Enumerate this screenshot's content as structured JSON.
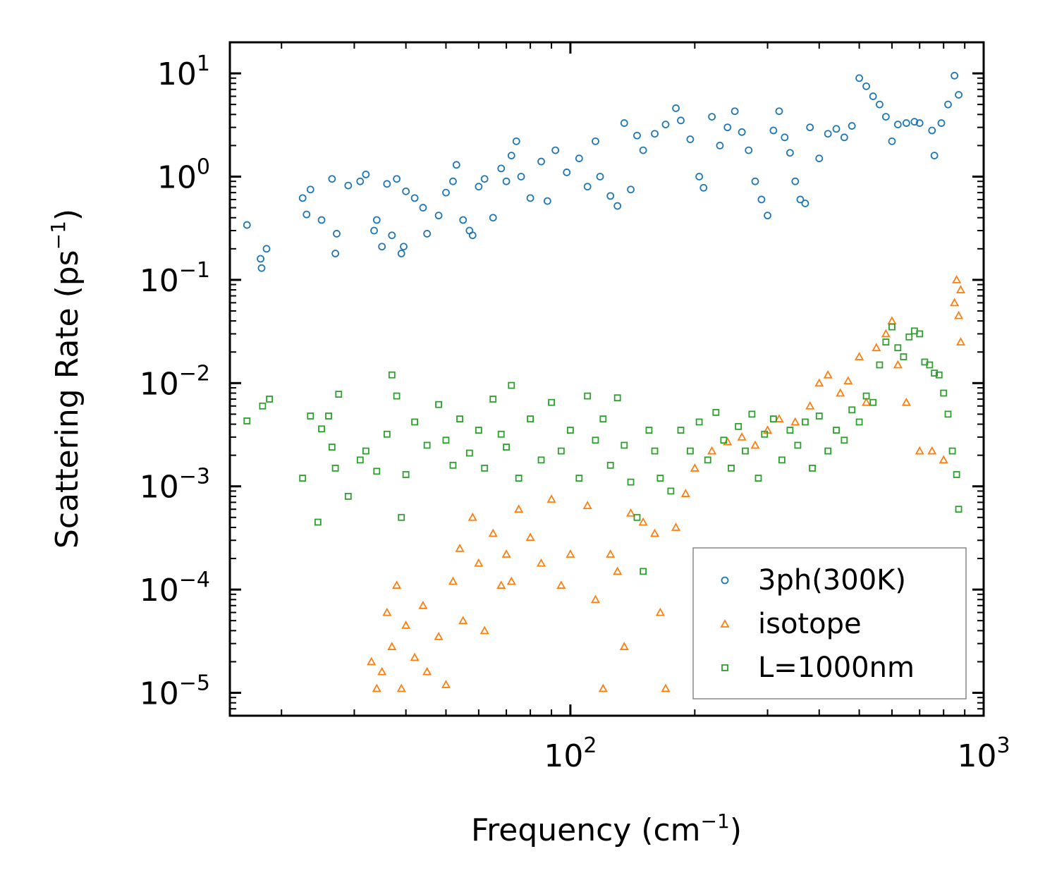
{
  "chart_data": {
    "type": "scatter",
    "title": "",
    "xlabel": "Frequency (cm",
    "xlabel_sup": "−1",
    "xlabel_tail": ")",
    "ylabel": "Scattering Rate (ps",
    "ylabel_sup": "−1",
    "ylabel_tail": ")",
    "xscale": "log",
    "yscale": "log",
    "xlim": [
      15,
      1000
    ],
    "ylim": [
      6e-06,
      20
    ],
    "xticks": [
      {
        "value": 100,
        "base": "10",
        "exp": "2"
      },
      {
        "value": 1000,
        "base": "10",
        "exp": "3"
      }
    ],
    "yticks": [
      {
        "value": 10,
        "base": "10",
        "exp": "1"
      },
      {
        "value": 1,
        "base": "10",
        "exp": "0"
      },
      {
        "value": 0.1,
        "base": "10",
        "exp": "−1"
      },
      {
        "value": 0.01,
        "base": "10",
        "exp": "−2"
      },
      {
        "value": 0.001,
        "base": "10",
        "exp": "−3"
      },
      {
        "value": 0.0001,
        "base": "10",
        "exp": "−4"
      },
      {
        "value": 1e-05,
        "base": "10",
        "exp": "−5"
      }
    ],
    "legend_position": "lower-right",
    "series": [
      {
        "name": "3ph(300K)",
        "marker": "circle",
        "color": "#1f77b4",
        "points": [
          [
            16.5,
            0.34
          ],
          [
            17.8,
            0.16
          ],
          [
            17.9,
            0.13
          ],
          [
            18.4,
            0.2
          ],
          [
            22.5,
            0.62
          ],
          [
            23.0,
            0.43
          ],
          [
            23.5,
            0.75
          ],
          [
            25.0,
            0.38
          ],
          [
            26.5,
            0.95
          ],
          [
            27.0,
            0.18
          ],
          [
            27.2,
            0.28
          ],
          [
            29.0,
            0.82
          ],
          [
            31.0,
            0.9
          ],
          [
            32.0,
            1.05
          ],
          [
            33.5,
            0.3
          ],
          [
            34.0,
            0.38
          ],
          [
            35.0,
            0.21
          ],
          [
            36.0,
            0.85
          ],
          [
            37.0,
            0.27
          ],
          [
            38.0,
            0.95
          ],
          [
            39.0,
            0.18
          ],
          [
            39.5,
            0.21
          ],
          [
            40.0,
            0.72
          ],
          [
            42.0,
            0.62
          ],
          [
            44.0,
            0.5
          ],
          [
            45.0,
            0.28
          ],
          [
            48.0,
            0.42
          ],
          [
            50.0,
            0.7
          ],
          [
            52.0,
            0.9
          ],
          [
            53.0,
            1.3
          ],
          [
            55.0,
            0.38
          ],
          [
            57.0,
            0.3
          ],
          [
            58.0,
            0.27
          ],
          [
            60.0,
            0.8
          ],
          [
            62.0,
            0.95
          ],
          [
            65.0,
            0.4
          ],
          [
            68.0,
            1.2
          ],
          [
            70.0,
            0.9
          ],
          [
            72.0,
            1.6
          ],
          [
            74.0,
            2.2
          ],
          [
            76.0,
            1.0
          ],
          [
            80.0,
            0.62
          ],
          [
            85.0,
            1.4
          ],
          [
            88.0,
            0.58
          ],
          [
            92.0,
            1.8
          ],
          [
            98.0,
            1.1
          ],
          [
            105.0,
            1.5
          ],
          [
            110.0,
            0.8
          ],
          [
            115.0,
            2.2
          ],
          [
            118.0,
            1.0
          ],
          [
            125.0,
            0.65
          ],
          [
            130.0,
            0.52
          ],
          [
            135.0,
            3.3
          ],
          [
            140.0,
            0.75
          ],
          [
            145.0,
            2.5
          ],
          [
            150.0,
            1.8
          ],
          [
            160.0,
            2.6
          ],
          [
            170.0,
            3.2
          ],
          [
            180.0,
            4.6
          ],
          [
            185.0,
            3.5
          ],
          [
            195.0,
            2.3
          ],
          [
            205.0,
            1.0
          ],
          [
            210.0,
            0.78
          ],
          [
            220.0,
            3.8
          ],
          [
            230.0,
            2.0
          ],
          [
            240.0,
            3.0
          ],
          [
            250.0,
            4.3
          ],
          [
            260.0,
            2.7
          ],
          [
            270.0,
            1.8
          ],
          [
            280.0,
            0.9
          ],
          [
            290.0,
            0.6
          ],
          [
            300.0,
            0.42
          ],
          [
            310.0,
            2.8
          ],
          [
            320.0,
            4.3
          ],
          [
            330.0,
            2.4
          ],
          [
            340.0,
            1.7
          ],
          [
            350.0,
            0.9
          ],
          [
            360.0,
            0.6
          ],
          [
            370.0,
            0.55
          ],
          [
            380.0,
            3.0
          ],
          [
            400.0,
            1.5
          ],
          [
            420.0,
            2.6
          ],
          [
            440.0,
            2.9
          ],
          [
            460.0,
            2.4
          ],
          [
            480.0,
            3.1
          ],
          [
            500.0,
            9.0
          ],
          [
            520.0,
            7.5
          ],
          [
            540.0,
            6.0
          ],
          [
            560.0,
            5.0
          ],
          [
            580.0,
            3.8
          ],
          [
            600.0,
            2.2
          ],
          [
            620.0,
            3.2
          ],
          [
            650.0,
            3.3
          ],
          [
            680.0,
            3.4
          ],
          [
            700.0,
            3.3
          ],
          [
            750.0,
            2.8
          ],
          [
            760.0,
            1.6
          ],
          [
            790.0,
            3.3
          ],
          [
            820.0,
            5.0
          ],
          [
            850.0,
            9.5
          ],
          [
            870.0,
            6.2
          ]
        ]
      },
      {
        "name": "isotope",
        "marker": "triangle",
        "color": "#ff7f0e",
        "points": [
          [
            33.0,
            2e-05
          ],
          [
            34.0,
            1.1e-05
          ],
          [
            35.0,
            1.6e-05
          ],
          [
            36.0,
            6e-05
          ],
          [
            37.0,
            2.8e-05
          ],
          [
            38.0,
            0.00011
          ],
          [
            39.0,
            1.1e-05
          ],
          [
            40.0,
            4.5e-05
          ],
          [
            42.0,
            2.2e-05
          ],
          [
            44.0,
            7e-05
          ],
          [
            45.0,
            1.6e-05
          ],
          [
            48.0,
            3.5e-05
          ],
          [
            50.0,
            1.2e-05
          ],
          [
            52.0,
            0.00012
          ],
          [
            54.0,
            0.00025
          ],
          [
            55.0,
            5e-05
          ],
          [
            58.0,
            0.0005
          ],
          [
            60.0,
            0.00018
          ],
          [
            62.0,
            4e-05
          ],
          [
            65.0,
            0.00035
          ],
          [
            68.0,
            0.00011
          ],
          [
            70.0,
            0.00022
          ],
          [
            72.0,
            0.00012
          ],
          [
            75.0,
            0.0006
          ],
          [
            80.0,
            0.00032
          ],
          [
            85.0,
            0.00018
          ],
          [
            90.0,
            0.00075
          ],
          [
            95.0,
            0.00011
          ],
          [
            100.0,
            0.00022
          ],
          [
            110.0,
            0.00065
          ],
          [
            115.0,
            8e-05
          ],
          [
            120.0,
            1.1e-05
          ],
          [
            125.0,
            0.00022
          ],
          [
            130.0,
            0.00015
          ],
          [
            135.0,
            2.8e-05
          ],
          [
            140.0,
            0.00055
          ],
          [
            150.0,
            0.00045
          ],
          [
            160.0,
            0.00035
          ],
          [
            165.0,
            6e-05
          ],
          [
            170.0,
            1.1e-05
          ],
          [
            180.0,
            0.0004
          ],
          [
            190.0,
            0.00085
          ],
          [
            200.0,
            0.0015
          ],
          [
            220.0,
            0.0022
          ],
          [
            240.0,
            0.0027
          ],
          [
            260.0,
            0.003
          ],
          [
            280.0,
            0.0025
          ],
          [
            300.0,
            0.0035
          ],
          [
            320.0,
            0.0045
          ],
          [
            350.0,
            0.0042
          ],
          [
            380.0,
            0.006
          ],
          [
            400.0,
            0.01
          ],
          [
            420.0,
            0.012
          ],
          [
            450.0,
            0.008
          ],
          [
            470.0,
            0.0105
          ],
          [
            500.0,
            0.018
          ],
          [
            520.0,
            0.0065
          ],
          [
            550.0,
            0.022
          ],
          [
            580.0,
            0.03
          ],
          [
            600.0,
            0.04
          ],
          [
            620.0,
            0.015
          ],
          [
            650.0,
            0.0065
          ],
          [
            700.0,
            0.0022
          ],
          [
            750.0,
            0.0022
          ],
          [
            800.0,
            0.0018
          ],
          [
            850.0,
            0.06
          ],
          [
            860.0,
            0.1
          ],
          [
            870.0,
            0.045
          ],
          [
            880.0,
            0.025
          ],
          [
            880.0,
            0.08
          ]
        ]
      },
      {
        "name": "L=1000nm",
        "marker": "square",
        "color": "#2ca02c",
        "points": [
          [
            16.5,
            0.0043
          ],
          [
            18.0,
            0.006
          ],
          [
            18.7,
            0.007
          ],
          [
            22.5,
            0.0012
          ],
          [
            23.5,
            0.0048
          ],
          [
            24.5,
            0.00045
          ],
          [
            25.0,
            0.0036
          ],
          [
            26.0,
            0.0048
          ],
          [
            26.5,
            0.0024
          ],
          [
            27.0,
            0.0015
          ],
          [
            27.5,
            0.0078
          ],
          [
            29.0,
            0.0008
          ],
          [
            31.0,
            0.0018
          ],
          [
            32.0,
            0.0022
          ],
          [
            34.0,
            0.0014
          ],
          [
            36.0,
            0.0032
          ],
          [
            37.0,
            0.012
          ],
          [
            38.0,
            0.0075
          ],
          [
            39.0,
            0.0005
          ],
          [
            40.0,
            0.0013
          ],
          [
            42.0,
            0.0042
          ],
          [
            45.0,
            0.0025
          ],
          [
            48.0,
            0.0062
          ],
          [
            50.0,
            0.0028
          ],
          [
            52.0,
            0.0016
          ],
          [
            54.0,
            0.0045
          ],
          [
            57.0,
            0.0021
          ],
          [
            60.0,
            0.0035
          ],
          [
            62.0,
            0.0015
          ],
          [
            65.0,
            0.007
          ],
          [
            68.0,
            0.0032
          ],
          [
            70.0,
            0.0024
          ],
          [
            72.0,
            0.0095
          ],
          [
            75.0,
            0.0012
          ],
          [
            80.0,
            0.0045
          ],
          [
            85.0,
            0.0018
          ],
          [
            90.0,
            0.0065
          ],
          [
            95.0,
            0.0022
          ],
          [
            100.0,
            0.0035
          ],
          [
            105.0,
            0.0012
          ],
          [
            110.0,
            0.0075
          ],
          [
            115.0,
            0.0028
          ],
          [
            120.0,
            0.0045
          ],
          [
            125.0,
            0.0016
          ],
          [
            130.0,
            0.0072
          ],
          [
            135.0,
            0.0025
          ],
          [
            140.0,
            0.0011
          ],
          [
            145.0,
            0.0005
          ],
          [
            150.0,
            0.00015
          ],
          [
            155.0,
            0.0035
          ],
          [
            160.0,
            0.0022
          ],
          [
            165.0,
            0.0012
          ],
          [
            175.0,
            0.0009
          ],
          [
            185.0,
            0.0035
          ],
          [
            195.0,
            0.0022
          ],
          [
            205.0,
            0.0042
          ],
          [
            215.0,
            0.0018
          ],
          [
            225.0,
            0.0052
          ],
          [
            235.0,
            0.0028
          ],
          [
            245.0,
            0.0015
          ],
          [
            255.0,
            0.0038
          ],
          [
            265.0,
            0.0022
          ],
          [
            275.0,
            0.005
          ],
          [
            285.0,
            0.0012
          ],
          [
            295.0,
            0.0032
          ],
          [
            310.0,
            0.0045
          ],
          [
            325.0,
            0.0018
          ],
          [
            340.0,
            0.0035
          ],
          [
            355.0,
            0.0025
          ],
          [
            370.0,
            0.0042
          ],
          [
            385.0,
            0.0015
          ],
          [
            400.0,
            0.0048
          ],
          [
            420.0,
            0.0022
          ],
          [
            440.0,
            0.0035
          ],
          [
            460.0,
            0.0028
          ],
          [
            480.0,
            0.0055
          ],
          [
            500.0,
            0.0042
          ],
          [
            520.0,
            0.0075
          ],
          [
            540.0,
            0.0065
          ],
          [
            560.0,
            0.015
          ],
          [
            580.0,
            0.025
          ],
          [
            600.0,
            0.035
          ],
          [
            620.0,
            0.022
          ],
          [
            640.0,
            0.018
          ],
          [
            660.0,
            0.028
          ],
          [
            680.0,
            0.032
          ],
          [
            700.0,
            0.03
          ],
          [
            720.0,
            0.016
          ],
          [
            740.0,
            0.015
          ],
          [
            760.0,
            0.0125
          ],
          [
            780.0,
            0.012
          ],
          [
            800.0,
            0.008
          ],
          [
            820.0,
            0.005
          ],
          [
            840.0,
            0.0022
          ],
          [
            860.0,
            0.0013
          ],
          [
            870.0,
            0.0006
          ]
        ]
      }
    ]
  }
}
